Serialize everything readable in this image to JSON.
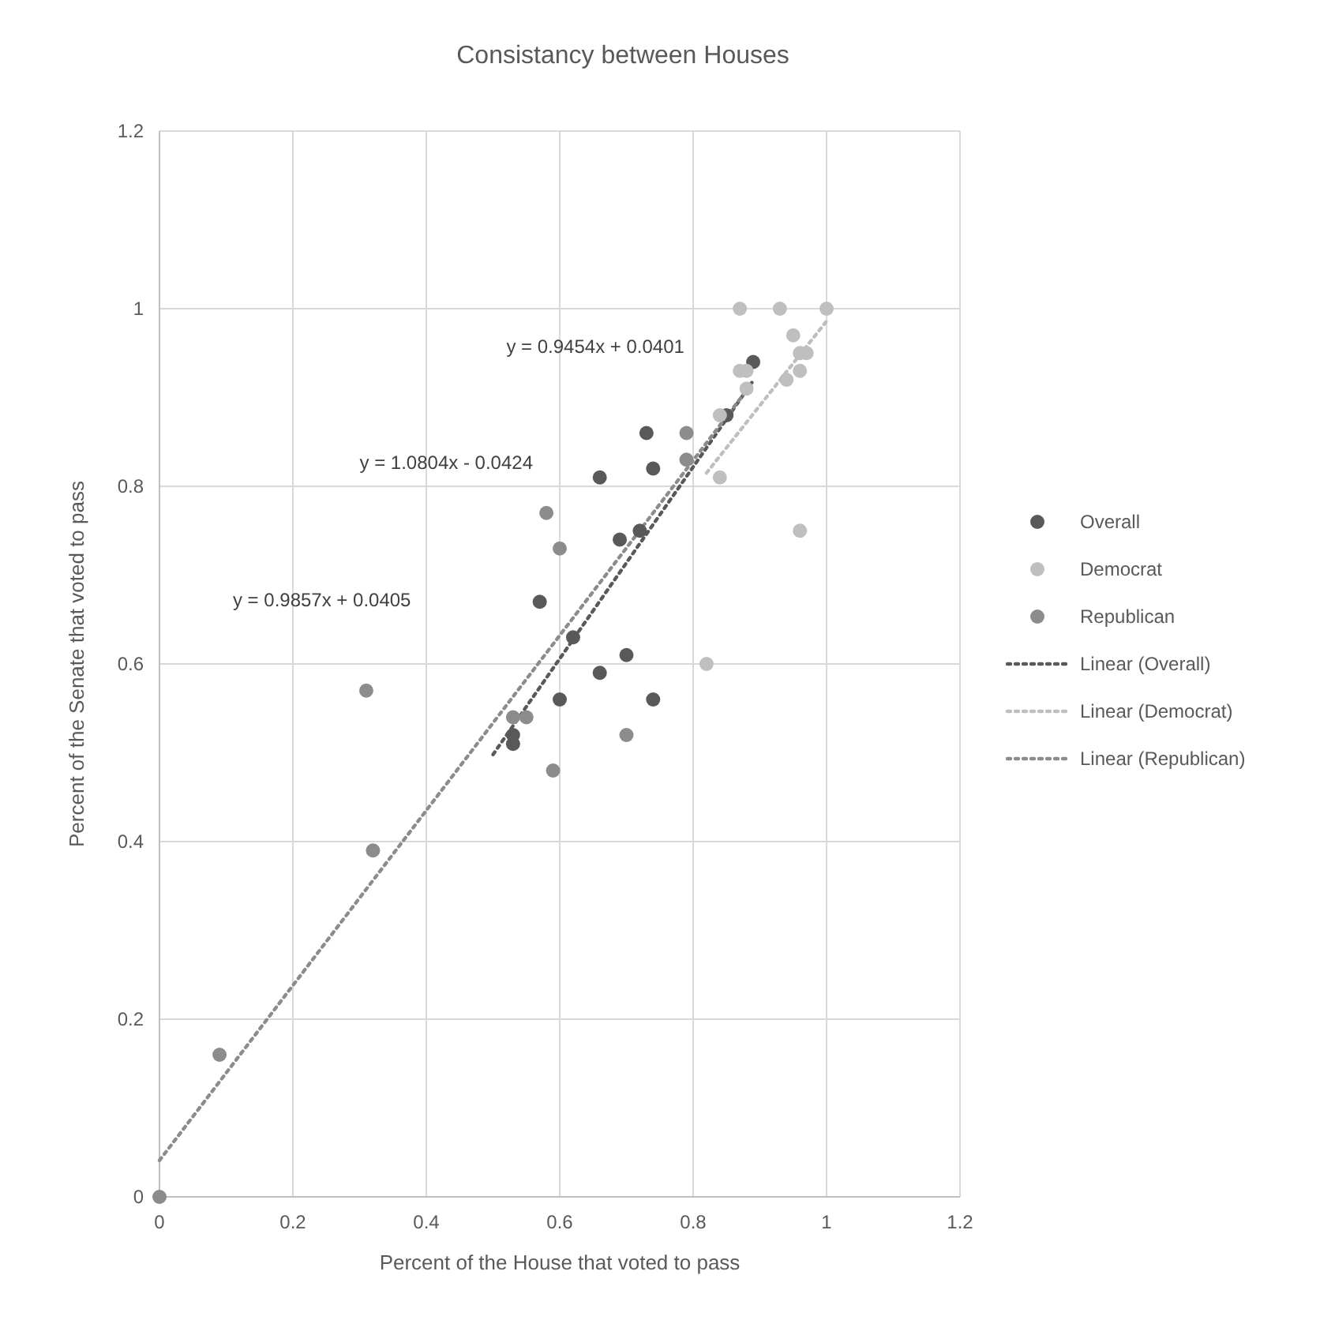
{
  "chart_data": {
    "type": "scatter",
    "title": "Consistancy between Houses",
    "xlabel": "Percent of the House that voted to pass",
    "ylabel": "Percent of the Senate that voted to pass",
    "xlim": [
      0,
      1.2
    ],
    "ylim": [
      0,
      1.2
    ],
    "xticks": [
      0,
      0.2,
      0.4,
      0.6,
      0.8,
      1,
      1.2
    ],
    "yticks": [
      0,
      0.2,
      0.4,
      0.6,
      0.8,
      1,
      1.2
    ],
    "grid": true,
    "legend": "right",
    "marker": "circle",
    "series": [
      {
        "name": "Overall",
        "color": "#595959",
        "x": [
          0.89,
          0.66,
          0.73,
          0.74,
          0.69,
          0.72,
          0.57,
          0.62,
          0.7,
          0.66,
          0.6,
          0.74,
          0.53,
          0.53,
          0.85
        ],
        "values": [
          0.94,
          0.81,
          0.86,
          0.82,
          0.74,
          0.75,
          0.67,
          0.63,
          0.61,
          0.59,
          0.56,
          0.56,
          0.52,
          0.51,
          0.88
        ]
      },
      {
        "name": "Democrat",
        "color": "#bfbfbf",
        "x": [
          0.87,
          0.93,
          1.0,
          0.95,
          0.96,
          0.97,
          0.87,
          0.88,
          0.96,
          0.94,
          0.88,
          0.84,
          0.84,
          0.96,
          0.82
        ],
        "values": [
          1.0,
          1.0,
          1.0,
          0.97,
          0.95,
          0.95,
          0.93,
          0.93,
          0.93,
          0.92,
          0.91,
          0.88,
          0.81,
          0.75,
          0.6
        ]
      },
      {
        "name": "Republican",
        "color": "#8c8c8c",
        "x": [
          0.79,
          0.79,
          0.58,
          0.6,
          0.53,
          0.55,
          0.7,
          0.59,
          0.31,
          0.32,
          0.09,
          0
        ],
        "values": [
          0.86,
          0.83,
          0.77,
          0.73,
          0.54,
          0.54,
          0.52,
          0.48,
          0.57,
          0.39,
          0.16,
          0
        ]
      },
      {
        "name": "Linear (Overall)",
        "type": "line",
        "line_style": "dotted",
        "marker": "none",
        "color": "#595959",
        "x": [
          0.5,
          0.89
        ],
        "values": [
          0.498,
          0.919
        ]
      },
      {
        "name": "Linear (Democrat)",
        "type": "line",
        "line_style": "dotted",
        "marker": "none",
        "color": "#bfbfbf",
        "x": [
          0.82,
          1.0
        ],
        "values": [
          0.815,
          0.986
        ]
      },
      {
        "name": "Linear (Republican)",
        "type": "line",
        "line_style": "dotted",
        "marker": "none",
        "color": "#8c8c8c",
        "x": [
          0,
          0.88
        ],
        "values": [
          0.041,
          0.908
        ]
      }
    ],
    "annotations": [
      "y = 0.9454x + 0.0401",
      "y = 1.0804x - 0.0424",
      "y = 0.9857x + 0.0405"
    ]
  }
}
